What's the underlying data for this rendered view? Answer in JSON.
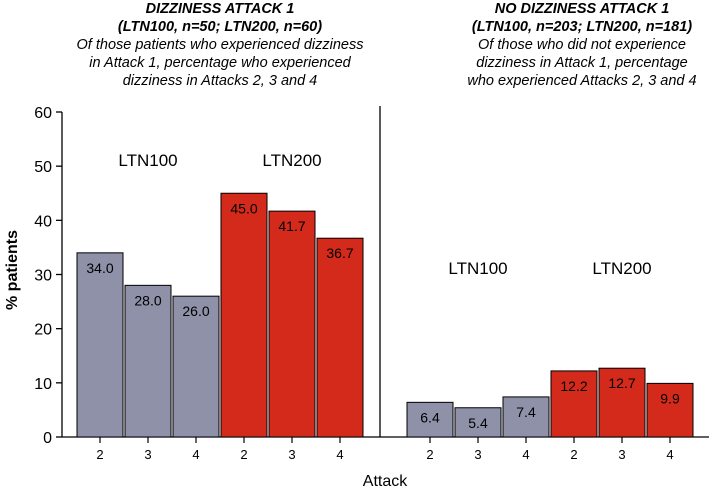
{
  "left_panel": {
    "title": "DIZZINESS ATTACK 1",
    "subtitle": "(LTN100, n=50;  LTN200, n=60)",
    "desc": [
      "Of those patients who experienced dizziness",
      "in Attack 1, percentage who experienced",
      "dizziness in Attacks 2, 3 and 4"
    ]
  },
  "right_panel": {
    "title": "NO  DIZZINESS ATTACK 1",
    "subtitle": "(LTN100, n=203; LTN200, n=181)",
    "desc": [
      "Of those who did not experience",
      "dizziness in Attack 1, percentage",
      "who experienced Attacks 2, 3 and 4"
    ]
  },
  "colors": {
    "ltn100": "#8e91a8",
    "ltn200": "#d42a1c"
  },
  "chart_data": {
    "type": "bar",
    "ylabel": "% patients",
    "xlabel": "Attack",
    "ylim": [
      0,
      60
    ],
    "yticks": [
      0,
      10,
      20,
      30,
      40,
      50,
      60
    ],
    "panels": [
      {
        "name": "Dizziness Attack 1",
        "series": [
          {
            "name": "LTN100",
            "categories": [
              "2",
              "3",
              "4"
            ],
            "values": [
              34.0,
              28.0,
              26.0
            ],
            "labels": [
              "34.0",
              "28.0",
              "26.0"
            ]
          },
          {
            "name": "LTN200",
            "categories": [
              "2",
              "3",
              "4"
            ],
            "values": [
              45.0,
              41.7,
              36.7
            ],
            "labels": [
              "45.0",
              "41.7",
              "36.7"
            ]
          }
        ]
      },
      {
        "name": "No Dizziness Attack 1",
        "series": [
          {
            "name": "LTN100",
            "categories": [
              "2",
              "3",
              "4"
            ],
            "values": [
              6.4,
              5.4,
              7.4
            ],
            "labels": [
              "6.4",
              "5.4",
              "7.4"
            ]
          },
          {
            "name": "LTN200",
            "categories": [
              "2",
              "3",
              "4"
            ],
            "values": [
              12.2,
              12.7,
              9.9
            ],
            "labels": [
              "12.2",
              "12.7",
              "9.9"
            ]
          }
        ]
      }
    ]
  }
}
